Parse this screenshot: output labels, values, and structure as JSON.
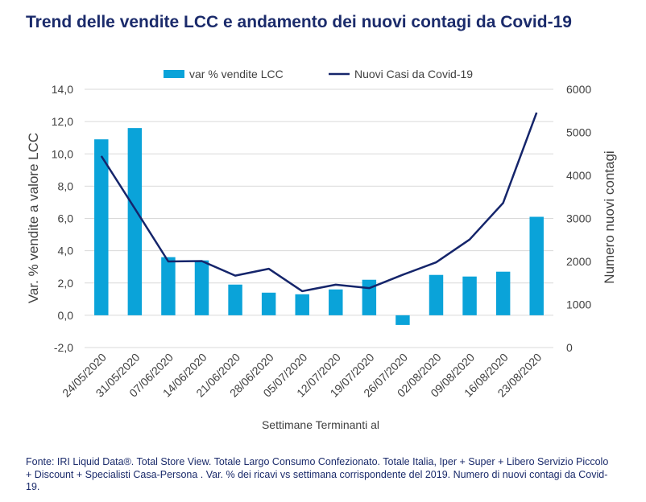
{
  "title": "Trend delle vendite LCC e andamento dei nuovi contagi da Covid-19",
  "footnote": "Fonte: IRI Liquid Data®. Total Store View. Totale Largo Consumo Confezionato. Totale Italia, Iper + Super + Libero Servizio Piccolo + Discount + Specialisti Casa-Persona . Var. % dei ricavi vs settimana corrispondente del 2019. Numero di nuovi contagi da Covid-19.",
  "colors": {
    "bar": "#0aa3d9",
    "line": "#15256b",
    "title": "#1b2b6b",
    "grid": "#d9d9d9",
    "text": "#404040"
  },
  "chart_data": {
    "type": "bar+line",
    "categories": [
      "24/05/2020",
      "31/05/2020",
      "07/06/2020",
      "14/06/2020",
      "21/06/2020",
      "28/06/2020",
      "05/07/2020",
      "12/07/2020",
      "19/07/2020",
      "26/07/2020",
      "02/08/2020",
      "09/08/2020",
      "16/08/2020",
      "23/08/2020"
    ],
    "series": [
      {
        "name": "var % vendite LCC",
        "type": "bar",
        "axis": "left",
        "values": [
          10.9,
          11.6,
          3.6,
          3.4,
          1.9,
          1.4,
          1.3,
          1.6,
          2.2,
          -0.6,
          2.5,
          2.4,
          2.7,
          6.1
        ]
      },
      {
        "name": "Nuovi Casi da Covid-19",
        "type": "line",
        "axis": "right",
        "values": [
          4450,
          3230,
          2000,
          2010,
          1670,
          1830,
          1310,
          1460,
          1380,
          1690,
          1980,
          2510,
          3360,
          5460
        ]
      }
    ],
    "xlabel": "Settimane Terminanti al",
    "ylabel": "Var. % vendite a valore LCC",
    "y2label": "Numero nuovi contagi",
    "ylim": [
      -2,
      14
    ],
    "yticks": [
      "-2,0",
      "0,0",
      "2,0",
      "4,0",
      "6,0",
      "8,0",
      "10,0",
      "12,0",
      "14,0"
    ],
    "y2lim": [
      0,
      6000
    ],
    "y2ticks": [
      "0",
      "1000",
      "2000",
      "3000",
      "4000",
      "5000",
      "6000"
    ],
    "grid": true,
    "legend_position": "top"
  }
}
